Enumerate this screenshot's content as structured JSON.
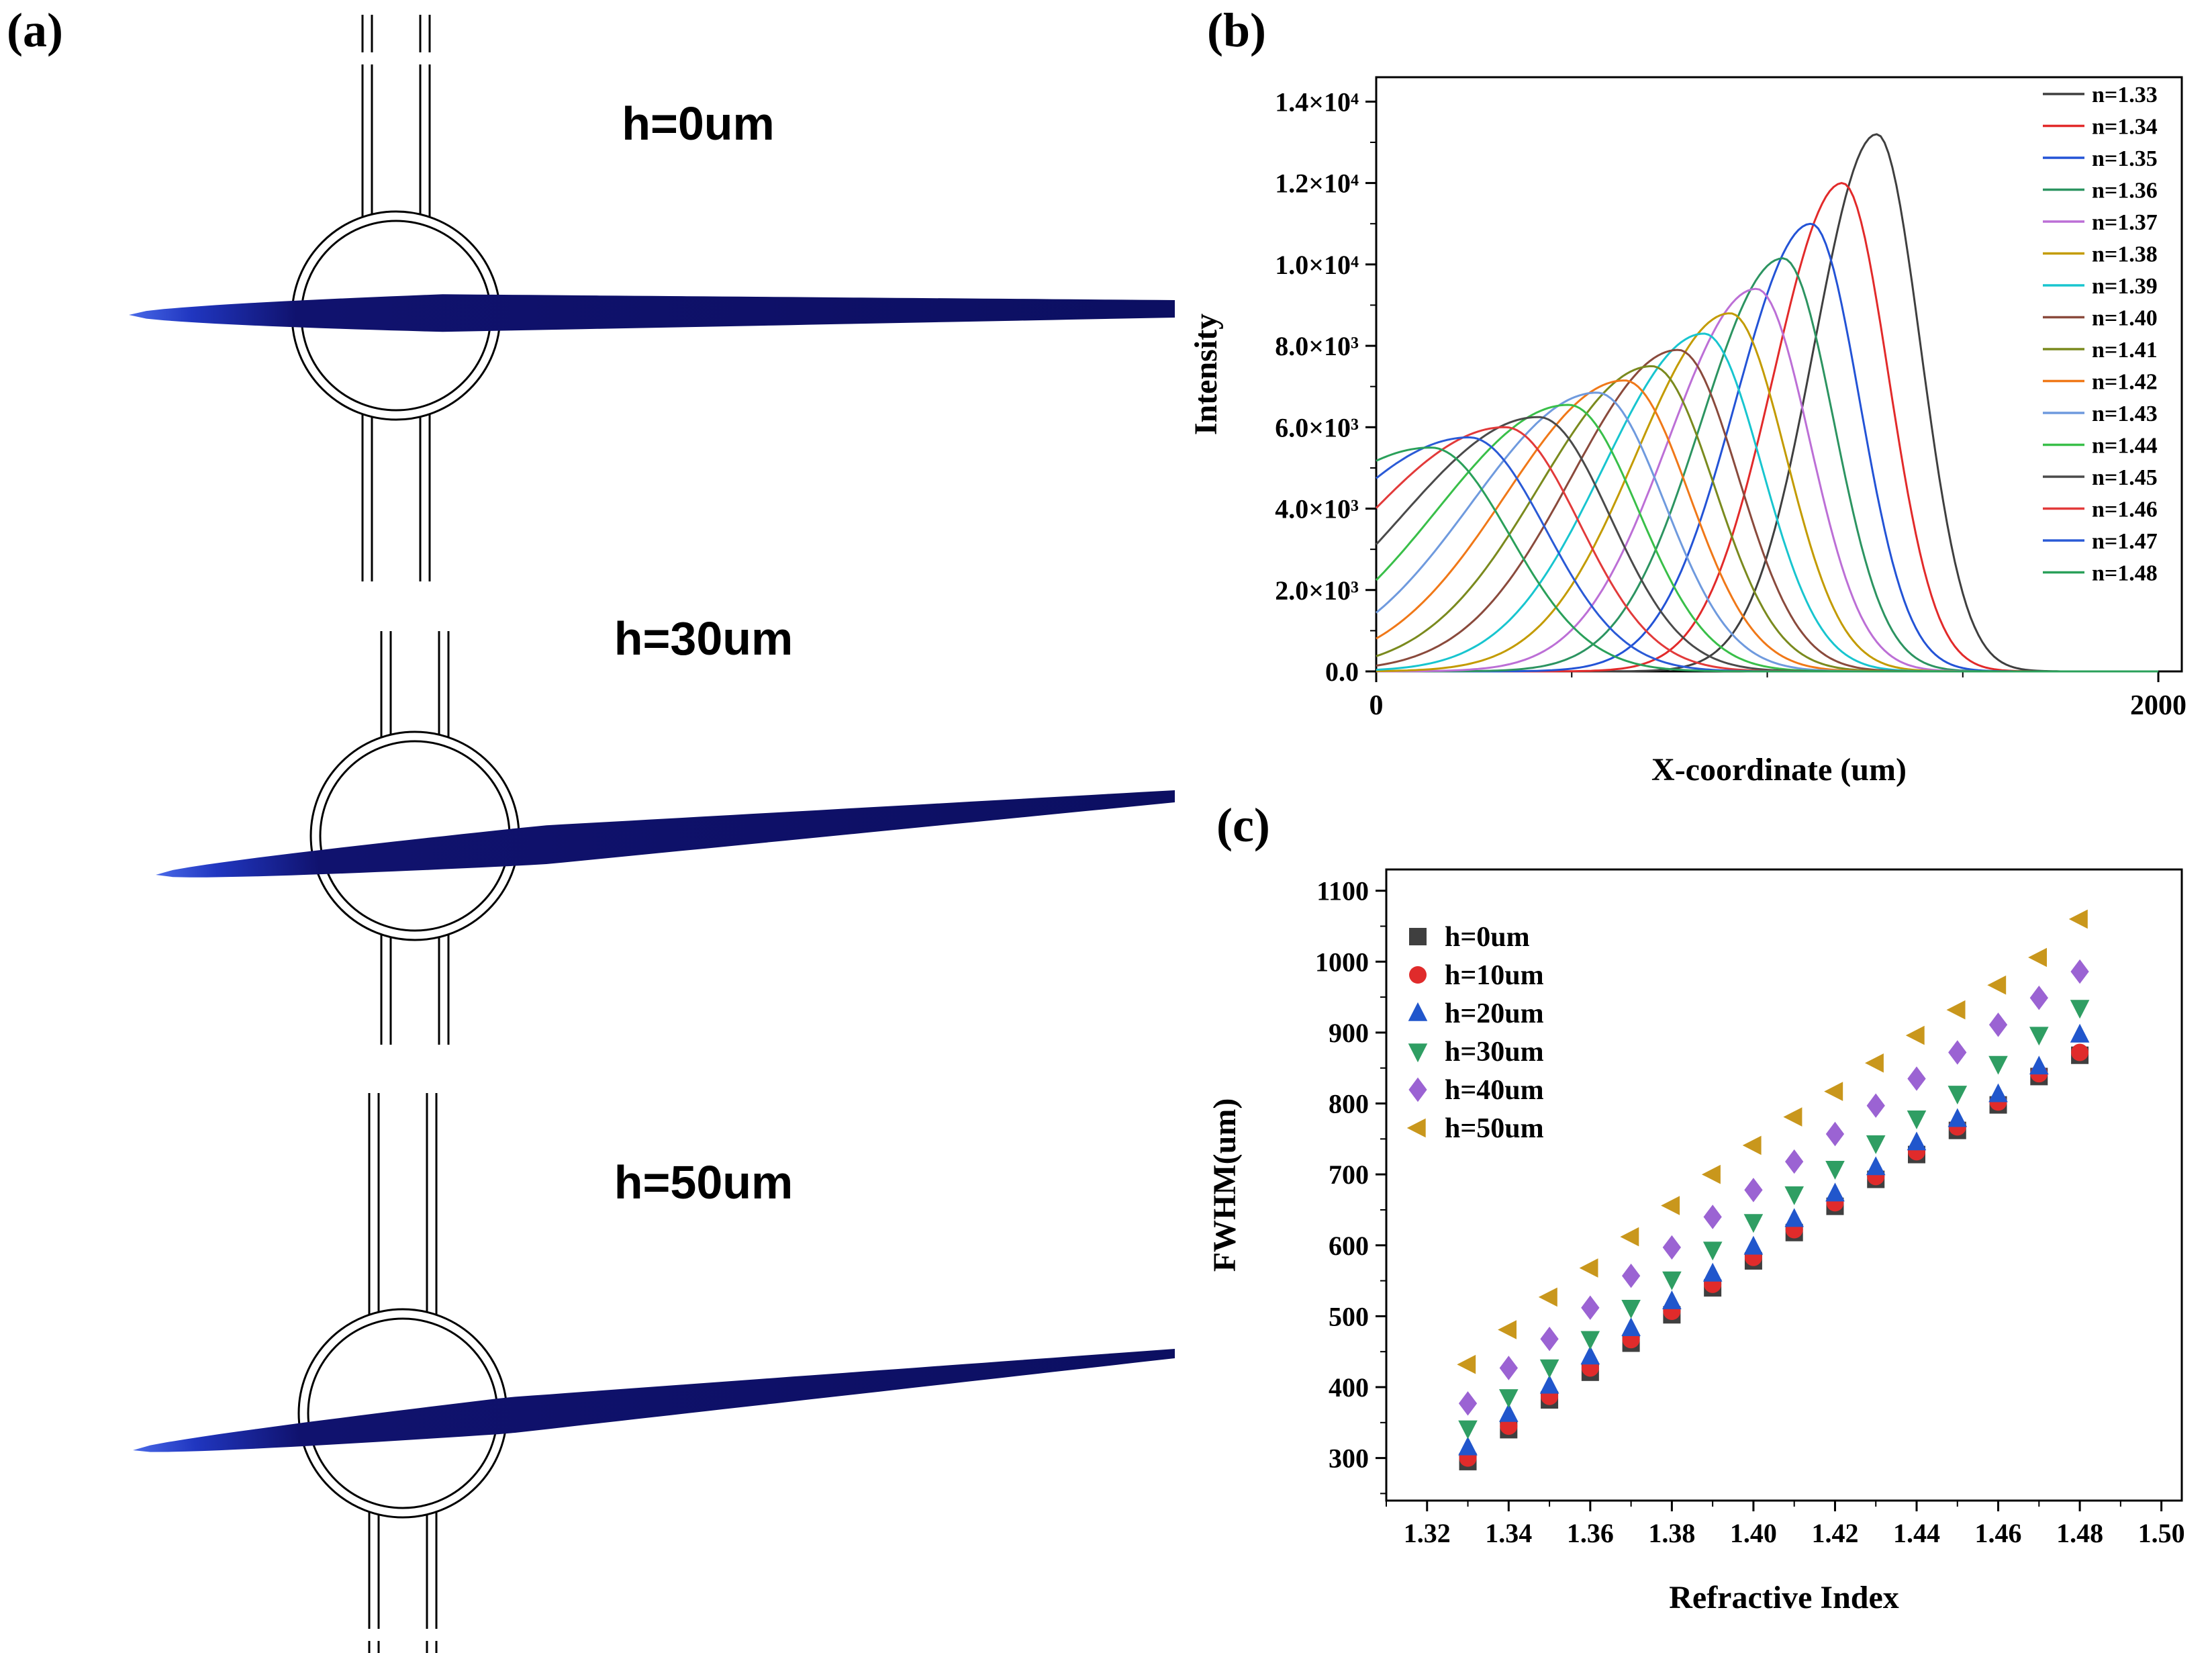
{
  "panels": {
    "a_label": "(a)",
    "b_label": "(b)",
    "c_label": "(c)"
  },
  "panel_a": {
    "beam_color": "#10126e",
    "units": [
      {
        "label": "h=0um"
      },
      {
        "label": "h=30um"
      },
      {
        "label": "h=50um"
      }
    ]
  },
  "chart_data": [
    {
      "type": "line",
      "title": "",
      "xlabel": "X-coordinate (um)",
      "ylabel": "Intensity",
      "xlim": [
        0,
        2060
      ],
      "ylim": [
        0,
        14600
      ],
      "xticks": [
        0,
        2000
      ],
      "xtick_labels": [
        "0",
        "2000"
      ],
      "xminor_ticks": [
        500,
        1000,
        1500
      ],
      "yticks": [
        0,
        2000,
        4000,
        6000,
        8000,
        10000,
        12000,
        14000
      ],
      "ytick_labels": [
        "0.0",
        "2.0×10³",
        "4.0×10³",
        "6.0×10³",
        "8.0×10³",
        "1.0×10⁴",
        "1.2×10⁴",
        "1.4×10⁴"
      ],
      "grid": false,
      "legend_position": "right-inside",
      "curve_model": "asymmetric-gaussian",
      "series": [
        {
          "name": "n=1.33",
          "color": "#3f3f3f",
          "peak_x": 1280,
          "peak_y": 13200,
          "sigma_left": 160,
          "sigma_right": 112
        },
        {
          "name": "n=1.34",
          "color": "#e22a2a",
          "peak_x": 1192,
          "peak_y": 12000,
          "sigma_left": 176,
          "sigma_right": 118
        },
        {
          "name": "n=1.35",
          "color": "#2353d6",
          "peak_x": 1112,
          "peak_y": 11000,
          "sigma_left": 192,
          "sigma_right": 124
        },
        {
          "name": "n=1.36",
          "color": "#2c9461",
          "peak_x": 1040,
          "peak_y": 10150,
          "sigma_left": 208,
          "sigma_right": 130
        },
        {
          "name": "n=1.37",
          "color": "#bc6fd6",
          "peak_x": 972,
          "peak_y": 9400,
          "sigma_left": 224,
          "sigma_right": 136
        },
        {
          "name": "n=1.38",
          "color": "#c39b00",
          "peak_x": 905,
          "peak_y": 8800,
          "sigma_left": 240,
          "sigma_right": 142
        },
        {
          "name": "n=1.39",
          "color": "#18c5cf",
          "peak_x": 838,
          "peak_y": 8300,
          "sigma_left": 256,
          "sigma_right": 148
        },
        {
          "name": "n=1.40",
          "color": "#8a4a3c",
          "peak_x": 772,
          "peak_y": 7900,
          "sigma_left": 272,
          "sigma_right": 154
        },
        {
          "name": "n=1.41",
          "color": "#7a8a1e",
          "peak_x": 705,
          "peak_y": 7500,
          "sigma_left": 288,
          "sigma_right": 160
        },
        {
          "name": "n=1.42",
          "color": "#f07818",
          "peak_x": 635,
          "peak_y": 7150,
          "sigma_left": 304,
          "sigma_right": 166
        },
        {
          "name": "n=1.43",
          "color": "#6f9ade",
          "peak_x": 565,
          "peak_y": 6850,
          "sigma_left": 320,
          "sigma_right": 172
        },
        {
          "name": "n=1.44",
          "color": "#39bf49",
          "peak_x": 492,
          "peak_y": 6550,
          "sigma_left": 336,
          "sigma_right": 178
        },
        {
          "name": "n=1.45",
          "color": "#4a4a4a",
          "peak_x": 415,
          "peak_y": 6250,
          "sigma_left": 352,
          "sigma_right": 184
        },
        {
          "name": "n=1.46",
          "color": "#e23a3a",
          "peak_x": 330,
          "peak_y": 6000,
          "sigma_left": 368,
          "sigma_right": 190
        },
        {
          "name": "n=1.47",
          "color": "#2a5ad6",
          "peak_x": 238,
          "peak_y": 5750,
          "sigma_left": 384,
          "sigma_right": 196
        },
        {
          "name": "n=1.48",
          "color": "#2aa05a",
          "peak_x": 140,
          "peak_y": 5500,
          "sigma_left": 400,
          "sigma_right": 202
        }
      ]
    },
    {
      "type": "scatter",
      "title": "",
      "xlabel": "Refractive Index",
      "ylabel": "FWHM(um)",
      "xlim": [
        1.31,
        1.505
      ],
      "ylim": [
        240,
        1130
      ],
      "xticks": [
        1.32,
        1.34,
        1.36,
        1.38,
        1.4,
        1.42,
        1.44,
        1.46,
        1.48,
        1.5
      ],
      "yticks": [
        300,
        400,
        500,
        600,
        700,
        800,
        900,
        1000,
        1100
      ],
      "grid": false,
      "legend_position": "top-left-inside",
      "x": [
        1.33,
        1.34,
        1.35,
        1.36,
        1.37,
        1.38,
        1.39,
        1.4,
        1.41,
        1.42,
        1.43,
        1.44,
        1.45,
        1.46,
        1.47,
        1.48
      ],
      "series": [
        {
          "name": "h=0um",
          "marker": "square",
          "color": "#3f3f3f",
          "values": [
            295,
            340,
            382,
            421,
            462,
            502,
            540,
            578,
            618,
            655,
            693,
            728,
            762,
            798,
            838,
            868
          ]
        },
        {
          "name": "h=10um",
          "marker": "circle",
          "color": "#e02b2b",
          "values": [
            300,
            345,
            387,
            427,
            467,
            507,
            545,
            583,
            622,
            660,
            697,
            732,
            767,
            802,
            842,
            872
          ]
        },
        {
          "name": "h=20um",
          "marker": "triangle-up",
          "color": "#2156cc",
          "values": [
            315,
            362,
            402,
            443,
            483,
            521,
            560,
            598,
            637,
            673,
            710,
            745,
            778,
            813,
            852,
            897
          ]
        },
        {
          "name": "h=30um",
          "marker": "triangle-down",
          "color": "#2f9e63",
          "values": [
            342,
            386,
            428,
            468,
            512,
            552,
            594,
            633,
            672,
            708,
            744,
            779,
            814,
            856,
            897,
            935
          ]
        },
        {
          "name": "h=40um",
          "marker": "diamond",
          "color": "#9b63d3",
          "values": [
            377,
            427,
            468,
            512,
            557,
            597,
            640,
            678,
            718,
            757,
            797,
            835,
            872,
            911,
            949,
            986
          ]
        },
        {
          "name": "h=50um",
          "marker": "triangle-left",
          "color": "#c9971c",
          "values": [
            432,
            481,
            527,
            568,
            612,
            656,
            700,
            741,
            781,
            817,
            857,
            896,
            932,
            967,
            1006,
            1060
          ]
        }
      ]
    }
  ]
}
